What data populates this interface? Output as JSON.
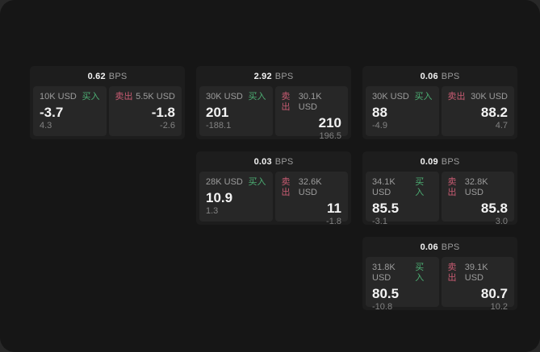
{
  "labels": {
    "bps_unit": "BPS",
    "buy": "买入",
    "sell": "卖出"
  },
  "colors": {
    "screen_bg": "#161616",
    "card_bg": "#1d1d1d",
    "panel_bg": "#272727",
    "value_text": "#f3f3f3",
    "muted_text": "#9c9c9c",
    "dim_text": "#828282",
    "buy": "#4cae73",
    "sell": "#c75b72"
  },
  "cards": [
    {
      "col": 1,
      "row": 1,
      "bps": "0.62",
      "buy": {
        "amount": "10K USD",
        "value": "-3.7",
        "sub": "4.3"
      },
      "sell": {
        "amount": "5.5K USD",
        "value": "-1.8",
        "sub": "-2.6"
      }
    },
    {
      "col": 2,
      "row": 1,
      "bps": "2.92",
      "buy": {
        "amount": "30K USD",
        "value": "201",
        "sub": "-188.1"
      },
      "sell": {
        "amount": "30.1K USD",
        "value": "210",
        "sub": "196.5"
      }
    },
    {
      "col": 3,
      "row": 1,
      "bps": "0.06",
      "buy": {
        "amount": "30K USD",
        "value": "88",
        "sub": "-4.9"
      },
      "sell": {
        "amount": "30K USD",
        "value": "88.2",
        "sub": "4.7"
      }
    },
    {
      "col": 2,
      "row": 2,
      "bps": "0.03",
      "buy": {
        "amount": "28K USD",
        "value": "10.9",
        "sub": "1.3"
      },
      "sell": {
        "amount": "32.6K USD",
        "value": "11",
        "sub": "-1.8"
      }
    },
    {
      "col": 3,
      "row": 2,
      "bps": "0.09",
      "buy": {
        "amount": "34.1K USD",
        "value": "85.5",
        "sub": "-3.1"
      },
      "sell": {
        "amount": "32.8K USD",
        "value": "85.8",
        "sub": "3.0"
      }
    },
    {
      "col": 3,
      "row": 3,
      "bps": "0.06",
      "buy": {
        "amount": "31.8K USD",
        "value": "80.5",
        "sub": "-10.8"
      },
      "sell": {
        "amount": "39.1K USD",
        "value": "80.7",
        "sub": "10.2"
      }
    }
  ]
}
